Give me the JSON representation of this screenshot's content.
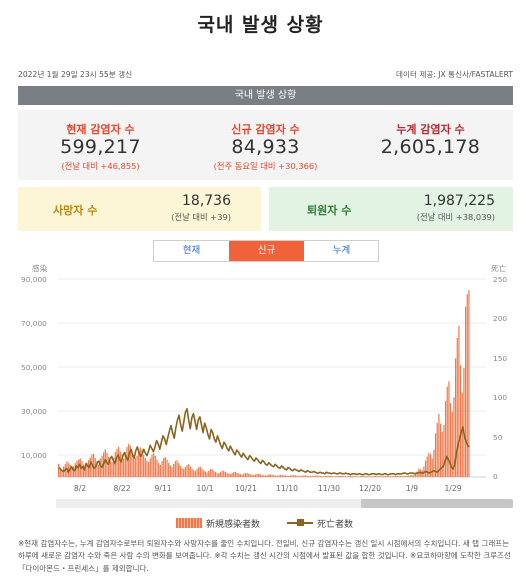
{
  "page": {
    "title": "국내 발생 상황"
  },
  "meta": {
    "updated": "2022년 1월 29일 23시 55분 갱신",
    "source": "데이터 제공: JX 통신사/FASTALERT"
  },
  "section_bar": "국내 발생 상황",
  "stats": [
    {
      "label": "현재 감염자 수",
      "value": "599,217",
      "delta": "(전날 대비 +46,855)",
      "color": "#e8452b"
    },
    {
      "label": "신규 감염자 수",
      "value": "84,933",
      "delta": "(전주 동요일 대비 +30,366)",
      "color": "#e8452b"
    },
    {
      "label": "누계 감염자 수",
      "value": "2,605,178",
      "delta": "",
      "color": "#c0282d"
    }
  ],
  "deaths": {
    "label": "사망자 수",
    "value": "18,736",
    "delta": "(전날 대비 +39)",
    "color": "#b8860b"
  },
  "recovered": {
    "label": "퇴원자 수",
    "value": "1,987,225",
    "delta": "(전날 대비 +38,039)",
    "color": "#2e7d32"
  },
  "tabs": [
    {
      "label": "현재",
      "active": false
    },
    {
      "label": "신규",
      "active": true
    },
    {
      "label": "누계",
      "active": false
    }
  ],
  "legend": {
    "infected": "新規感染者数",
    "deaths": "死亡者数"
  },
  "colors": {
    "bar": "#f2784b",
    "line": "#8a6420",
    "accent": "#f2623a",
    "link": "#2a6bc9"
  },
  "footnote": "※현재 감염자수는, 누계 감염자수로부터 퇴원자수와 사망자수를 줄인 수치입니다. 전일비, 신규 감염자수는 갱신 일시 시점에서의 수치입니다. 새 탭 그래프는 하루에 새로운 감염자 수와 죽은 사람 수의 변화를 보여줍니다. ※각 수치는 갱신 시간의 시점에서 발표된 값을 합한 것입니다. ※요코하마항에 도착한 크루즈선 「다이아몬드・프린세스」를 제외합니다.",
  "chart_data": {
    "type": "bar",
    "left_axis": {
      "title": "感染",
      "ticks": [
        "90,000",
        "70,000",
        "50,000",
        "30,000",
        "10,000"
      ],
      "ylim": [
        0,
        90000
      ]
    },
    "right_axis": {
      "title": "死亡",
      "ticks": [
        "250",
        "200",
        "150",
        "100",
        "50",
        "0"
      ],
      "ylim": [
        0,
        250
      ]
    },
    "x_ticks": [
      "8/2",
      "8/22",
      "9/11",
      "10/1",
      "10/21",
      "11/10",
      "11/30",
      "12/20",
      "1/9",
      "1/29"
    ],
    "grid": true,
    "series": [
      {
        "name": "新規感染者数",
        "kind": "bar",
        "axis": "left",
        "values": [
          6000,
          4200,
          2800,
          4800,
          5900,
          7100,
          6300,
          5500,
          3900,
          4800,
          6300,
          7400,
          7900,
          8400,
          7200,
          5700,
          4600,
          6400,
          7800,
          8900,
          10300,
          10500,
          8600,
          7300,
          5600,
          8400,
          9600,
          11200,
          12600,
          11000,
          9200,
          7300,
          6900,
          8800,
          11400,
          12800,
          13700,
          11600,
          10300,
          8400,
          11200,
          13600,
          15100,
          14200,
          12100,
          10200,
          8800,
          9600,
          11700,
          13400,
          12500,
          10100,
          8600,
          7300,
          6800,
          8500,
          10200,
          10800,
          9600,
          7800,
          6500,
          5500,
          7300,
          8600,
          9100,
          7900,
          6500,
          5300,
          4500,
          5900,
          7200,
          7600,
          6400,
          5100,
          4100,
          3600,
          4600,
          5500,
          5900,
          4800,
          3800,
          3100,
          2700,
          3600,
          4400,
          4700,
          3700,
          3100,
          2500,
          2100,
          2800,
          3500,
          3600,
          2900,
          2300,
          1900,
          1600,
          2200,
          2800,
          2900,
          2300,
          1900,
          1500,
          1300,
          1800,
          2200,
          2400,
          1900,
          1600,
          1300,
          1100,
          1500,
          1800,
          1900,
          1500,
          1200,
          1000,
          900,
          1200,
          1400,
          1500,
          1200,
          1000,
          800,
          700,
          900,
          1100,
          1200,
          1000,
          800,
          700,
          600,
          800,
          900,
          1000,
          800,
          700,
          600,
          500,
          700,
          800,
          900,
          700,
          600,
          500,
          400,
          600,
          700,
          800,
          600,
          500,
          500,
          400,
          500,
          600,
          700,
          600,
          500,
          400,
          400,
          500,
          600,
          600,
          500,
          400,
          400,
          300,
          400,
          500,
          600,
          500,
          400,
          400,
          300,
          400,
          500,
          500,
          400,
          400,
          300,
          300,
          400,
          500,
          500,
          400,
          400,
          300,
          300,
          400,
          400,
          500,
          400,
          400,
          300,
          300,
          400,
          500,
          500,
          400,
          400,
          400,
          400,
          500,
          600,
          600,
          500,
          500,
          500,
          500,
          600,
          700,
          800,
          800,
          1000,
          1500,
          2500,
          3800,
          3500,
          3000,
          4800,
          7500,
          9200,
          11000,
          10300,
          8400,
          12400,
          19800,
          24600,
          28700,
          24300,
          20600,
          23700,
          34500,
          41100,
          43500,
          33700,
          29600,
          36200,
          53900,
          63200,
          68800,
          50800,
          38400,
          49600,
          77400,
          83100,
          84933
        ]
      },
      {
        "name": "死亡者数",
        "kind": "line",
        "axis": "right",
        "values": [
          12,
          10,
          8,
          7,
          9,
          11,
          6,
          10,
          13,
          9,
          8,
          14,
          12,
          16,
          11,
          13,
          9,
          17,
          14,
          12,
          19,
          15,
          11,
          13,
          18,
          20,
          14,
          12,
          17,
          22,
          18,
          16,
          23,
          26,
          21,
          17,
          24,
          28,
          22,
          19,
          27,
          31,
          25,
          21,
          30,
          35,
          28,
          24,
          33,
          38,
          31,
          26,
          29,
          35,
          30,
          27,
          33,
          40,
          36,
          32,
          38,
          46,
          42,
          35,
          44,
          52,
          48,
          41,
          50,
          58,
          65,
          56,
          49,
          62,
          72,
          78,
          66,
          58,
          70,
          82,
          86,
          72,
          61,
          75,
          80,
          70,
          60,
          72,
          76,
          66,
          56,
          68,
          62,
          54,
          48,
          60,
          56,
          48,
          44,
          52,
          46,
          40,
          36,
          44,
          41,
          36,
          33,
          39,
          35,
          31,
          28,
          34,
          32,
          28,
          25,
          30,
          27,
          24,
          22,
          27,
          25,
          22,
          20,
          24,
          22,
          19,
          17,
          21,
          19,
          16,
          15,
          18,
          16,
          14,
          13,
          16,
          14,
          12,
          11,
          14,
          12,
          10,
          9,
          12,
          11,
          9,
          8,
          10,
          9,
          8,
          7,
          9,
          8,
          7,
          6,
          8,
          7,
          6,
          6,
          7,
          6,
          5,
          5,
          6,
          5,
          5,
          4,
          6,
          5,
          5,
          4,
          5,
          5,
          4,
          4,
          5,
          5,
          4,
          4,
          5,
          4,
          4,
          3,
          4,
          4,
          4,
          3,
          4,
          4,
          3,
          3,
          4,
          4,
          3,
          3,
          4,
          4,
          4,
          3,
          4,
          4,
          3,
          3,
          4,
          4,
          3,
          3,
          4,
          4,
          4,
          3,
          4,
          4,
          4,
          4,
          5,
          5,
          4,
          4,
          5,
          5,
          5,
          4,
          5,
          5,
          6,
          5,
          5,
          6,
          7,
          6,
          5,
          6,
          7,
          8,
          7,
          6,
          8,
          10,
          12,
          14,
          20,
          26,
          22,
          18,
          12,
          10,
          16,
          30,
          40,
          48,
          56,
          63,
          52,
          45,
          40,
          38
        ]
      }
    ]
  }
}
